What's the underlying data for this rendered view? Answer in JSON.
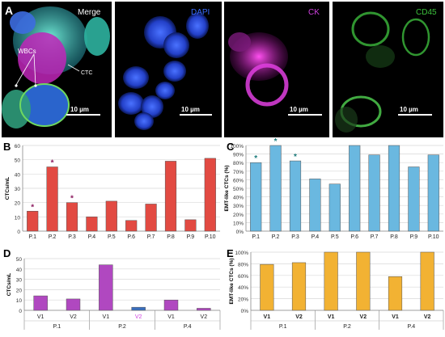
{
  "figure": {
    "panel_labels": {
      "a": "A",
      "b": "B",
      "c": "C",
      "d": "D",
      "e": "E"
    },
    "micrographs": [
      {
        "channel": "Merge",
        "scale_bar": "10 µm",
        "label_color": "#ffffff"
      },
      {
        "channel": "DAPI",
        "scale_bar": "10 µm",
        "label_color": "#3a6cff"
      },
      {
        "channel": "CK",
        "scale_bar": "10 µm",
        "label_color": "#d040e0"
      },
      {
        "channel": "CD45",
        "scale_bar": "10 µm",
        "label_color": "#3cc23c"
      }
    ],
    "annotations": {
      "wbc": "WBCs",
      "ctc": "CTC"
    },
    "significance_mark": "*"
  },
  "chart_data": [
    {
      "panel": "B",
      "type": "bar",
      "categories": [
        "P.1",
        "P.2",
        "P.3",
        "P.4",
        "P.5",
        "P.6",
        "P.7",
        "P.8",
        "P.9",
        "P.10"
      ],
      "values": [
        14,
        45,
        20,
        10,
        21,
        7.5,
        19,
        49,
        8,
        51
      ],
      "ylabel": "CTCs/mL",
      "ylim": [
        0,
        60
      ],
      "yticks": [
        "0",
        "10",
        "20",
        "30",
        "40",
        "50",
        "60"
      ],
      "marked": [
        0,
        1,
        2
      ],
      "mark_color": "#8b1a5e",
      "bar_color": "#e24a42",
      "grid": true
    },
    {
      "panel": "C",
      "type": "bar",
      "categories": [
        "P.1",
        "P.2",
        "P.3",
        "P.4",
        "P.5",
        "P.6",
        "P.7",
        "P.8",
        "P.9",
        "P.10"
      ],
      "values": [
        80,
        100,
        82,
        61,
        55,
        100,
        89,
        100,
        75,
        89
      ],
      "ylabel": "EMT-like CTCs (%)",
      "ylim": [
        0,
        100
      ],
      "yticks": [
        "0%",
        "10%",
        "20%",
        "30%",
        "40%",
        "50%",
        "60%",
        "70%",
        "80%",
        "90%",
        "100%"
      ],
      "marked": [
        0,
        1,
        2
      ],
      "mark_color": "#1b7a7a",
      "bar_color": "#6ab8e0",
      "grid": true
    },
    {
      "panel": "D",
      "type": "bar",
      "categories": [
        "V1",
        "V2",
        "V1",
        "V2",
        "V1",
        "V2"
      ],
      "groups": [
        "P.1",
        "P.2",
        "P.4"
      ],
      "values": [
        14,
        11,
        44,
        3,
        10,
        2
      ],
      "ylabel": "CTCs/mL",
      "ylim": [
        0,
        50
      ],
      "yticks": [
        "0",
        "10",
        "20",
        "30",
        "40",
        "50"
      ],
      "bar_color": "#b048c0",
      "v2_highlight_color": "#3a6fbf",
      "highlight_tick_color": "#d040e0",
      "grid": true
    },
    {
      "panel": "E",
      "type": "bar",
      "categories": [
        "V1",
        "V2",
        "V1",
        "V2",
        "V1",
        "V2"
      ],
      "groups": [
        "P.1",
        "P.2",
        "P.4"
      ],
      "values": [
        79,
        82,
        100,
        100,
        58,
        100
      ],
      "ylabel": "EMT-like CTCs (%)",
      "ylim": [
        0,
        100
      ],
      "yticks": [
        "0%",
        "20%",
        "40%",
        "60%",
        "80%",
        "100%"
      ],
      "bar_color": "#f2b233",
      "grid": true
    }
  ]
}
